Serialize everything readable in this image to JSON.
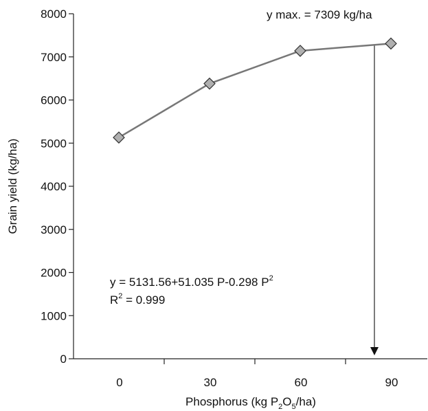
{
  "chart_data": {
    "type": "line",
    "x_label": [
      "Phosphorus (kg P",
      "2",
      "O",
      "5",
      "/ha)"
    ],
    "y_label": "Grain yield (kg/ha)",
    "categories": [
      "0",
      "30",
      "60",
      "90"
    ],
    "values": [
      5130,
      6380,
      7140,
      7309
    ],
    "color": "#777777",
    "marker_color": "#b0b0b0",
    "ylim": [
      0,
      8000
    ],
    "yticks": [
      0,
      1000,
      2000,
      3000,
      4000,
      5000,
      6000,
      7000,
      8000
    ],
    "annotations": {
      "ymax": "y max. = 7309 kg/ha",
      "equation": [
        "y = 5131.56+51.035 P-0.298 P",
        "2"
      ],
      "r2": [
        "R",
        "2",
        " = 0.999"
      ]
    }
  }
}
